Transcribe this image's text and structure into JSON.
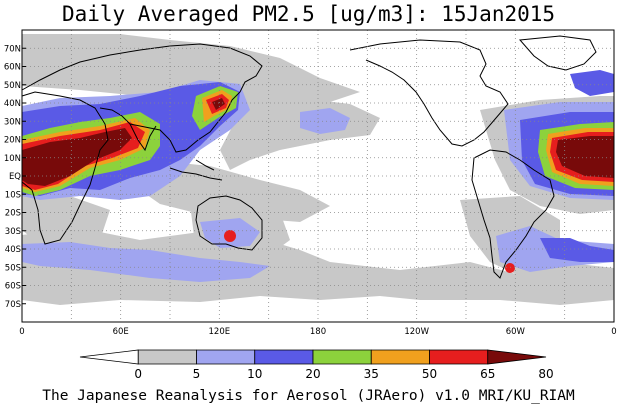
{
  "title": "Daily Averaged PM2.5 [ug/m3]: 15Jan2015",
  "credit": "The Japanese Reanalysis for Aerosol (JRAero) v1.0 MRI/KU_RIAM",
  "map": {
    "lat_labels": [
      "70N",
      "60N",
      "50N",
      "40N",
      "30N",
      "20N",
      "10N",
      "EQ",
      "10S",
      "20S",
      "30S",
      "40S",
      "50S",
      "60S",
      "70S"
    ],
    "lon_labels": [
      "0",
      "60E",
      "120E",
      "180",
      "120W",
      "60W",
      "0"
    ]
  },
  "colorbar": {
    "levels": [
      "0",
      "5",
      "10",
      "20",
      "35",
      "50",
      "65",
      "80"
    ],
    "colors": [
      "#ffffff",
      "#c8c8c8",
      "#a0a5f0",
      "#5a5ae6",
      "#8cd23c",
      "#f0a01e",
      "#e61e1e",
      "#780a0a"
    ]
  },
  "palette": {
    "grey": "#c8c8c8",
    "light_blue": "#a0a5f0",
    "blue": "#5a5ae6",
    "green": "#8cd23c",
    "orange": "#f0a01e",
    "red": "#e61e1e",
    "maroon": "#780a0a"
  }
}
